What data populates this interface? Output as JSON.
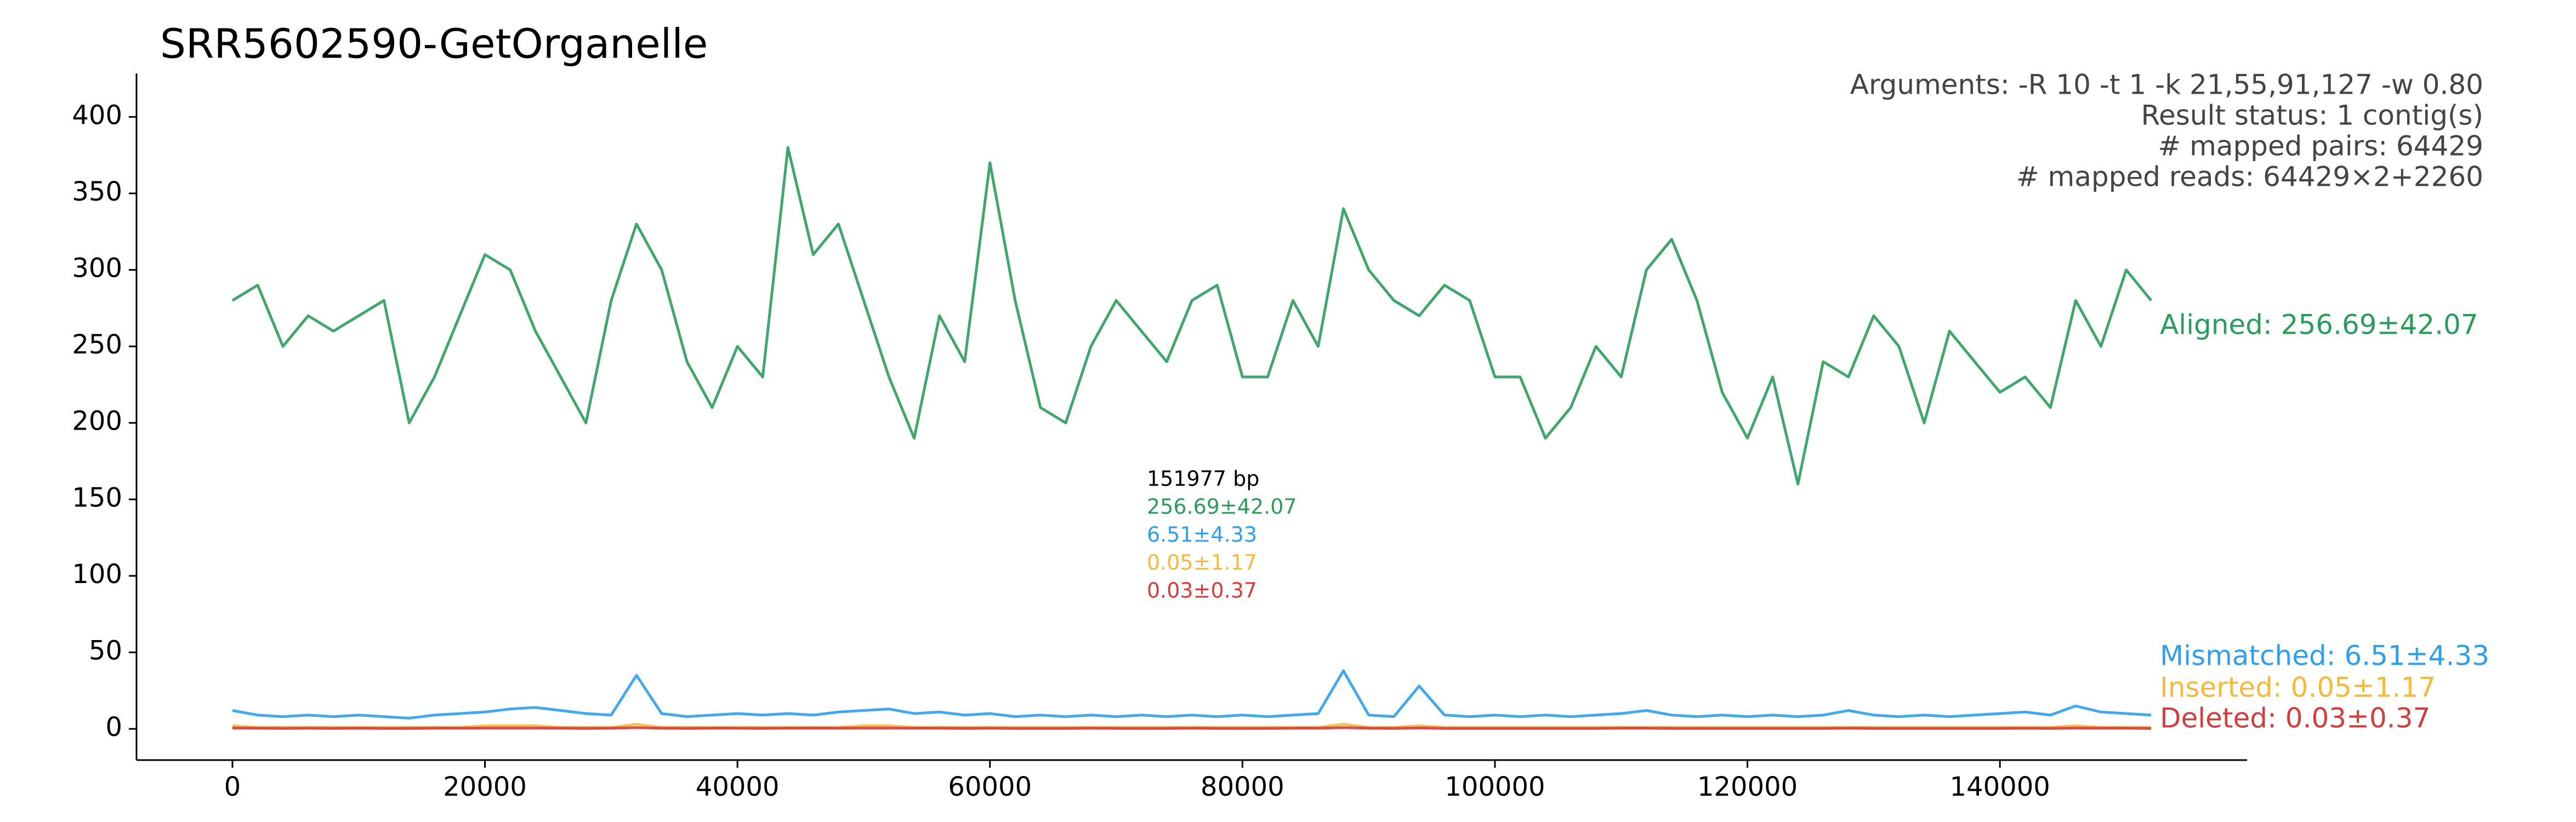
{
  "chart_data": {
    "type": "line",
    "title": "SRR5602590-GetOrganelle",
    "info_lines": [
      "Arguments: -R 10 -t 1 -k 21,55,91,127 -w 0.80",
      "Result status: 1 contig(s)",
      "# mapped pairs: 64429",
      "# mapped reads: 64429×2+2260"
    ],
    "annotations": [
      {
        "text": "151977 bp",
        "color": "#000000"
      },
      {
        "text": "256.69±42.07",
        "color": "#2a9d5c"
      },
      {
        "text": "6.51±4.33",
        "color": "#2ea0ec"
      },
      {
        "text": "0.05±1.17",
        "color": "#f6b93b"
      },
      {
        "text": "0.03±0.37",
        "color": "#d33d3d"
      }
    ],
    "x": [
      0,
      2000,
      4000,
      6000,
      8000,
      10000,
      12000,
      14000,
      16000,
      18000,
      20000,
      22000,
      24000,
      26000,
      28000,
      30000,
      32000,
      34000,
      36000,
      38000,
      40000,
      42000,
      44000,
      46000,
      48000,
      50000,
      52000,
      54000,
      56000,
      58000,
      60000,
      62000,
      64000,
      66000,
      68000,
      70000,
      72000,
      74000,
      76000,
      78000,
      80000,
      82000,
      84000,
      86000,
      88000,
      90000,
      92000,
      94000,
      96000,
      98000,
      100000,
      102000,
      104000,
      106000,
      108000,
      110000,
      112000,
      114000,
      116000,
      118000,
      120000,
      122000,
      124000,
      126000,
      128000,
      130000,
      132000,
      134000,
      136000,
      138000,
      140000,
      142000,
      144000,
      146000,
      148000,
      150000,
      151977
    ],
    "series": [
      {
        "name": "Aligned: 256.69±42.07",
        "color": "#2a9d5c",
        "values": [
          280,
          290,
          250,
          270,
          260,
          270,
          280,
          200,
          230,
          270,
          310,
          300,
          260,
          230,
          200,
          280,
          330,
          300,
          240,
          210,
          250,
          230,
          380,
          310,
          330,
          280,
          230,
          190,
          270,
          240,
          370,
          280,
          210,
          200,
          250,
          280,
          260,
          240,
          280,
          290,
          230,
          230,
          280,
          250,
          340,
          300,
          280,
          270,
          290,
          280,
          230,
          230,
          190,
          210,
          250,
          230,
          300,
          320,
          280,
          220,
          190,
          230,
          160,
          240,
          230,
          270,
          250,
          200,
          260,
          240,
          220,
          230,
          210,
          280,
          250,
          300,
          280
        ]
      },
      {
        "name": "Mismatched: 6.51±4.33",
        "color": "#2ea0ec",
        "values": [
          12,
          9,
          8,
          9,
          8,
          9,
          8,
          7,
          9,
          10,
          11,
          13,
          14,
          12,
          10,
          9,
          35,
          10,
          8,
          9,
          10,
          9,
          10,
          9,
          11,
          12,
          13,
          10,
          11,
          9,
          10,
          8,
          9,
          8,
          9,
          8,
          9,
          8,
          9,
          8,
          9,
          8,
          9,
          10,
          38,
          9,
          8,
          28,
          9,
          8,
          9,
          8,
          9,
          8,
          9,
          10,
          12,
          9,
          8,
          9,
          8,
          9,
          8,
          9,
          12,
          9,
          8,
          9,
          8,
          9,
          10,
          11,
          9,
          15,
          11,
          10,
          9
        ]
      },
      {
        "name": "Inserted: 0.05±1.17",
        "color": "#f6b93b",
        "values": [
          2,
          1,
          1,
          1,
          1,
          1,
          1,
          1,
          1,
          1,
          2,
          2,
          2,
          1,
          1,
          1,
          3,
          1,
          1,
          1,
          1,
          1,
          1,
          1,
          1,
          2,
          2,
          1,
          1,
          1,
          1,
          1,
          1,
          1,
          1,
          1,
          1,
          1,
          1,
          1,
          1,
          1,
          1,
          1,
          3,
          1,
          1,
          2,
          1,
          1,
          1,
          1,
          1,
          1,
          1,
          1,
          1,
          1,
          1,
          1,
          1,
          1,
          1,
          1,
          1,
          1,
          1,
          1,
          1,
          1,
          1,
          1,
          1,
          2,
          1,
          1,
          1
        ]
      },
      {
        "name": "Deleted: 0.03±0.37",
        "color": "#d33d3d",
        "values": [
          0.5,
          0.4,
          0.3,
          0.4,
          0.3,
          0.4,
          0.3,
          0.3,
          0.4,
          0.4,
          0.5,
          0.5,
          0.5,
          0.4,
          0.3,
          0.4,
          0.8,
          0.4,
          0.3,
          0.4,
          0.4,
          0.3,
          0.4,
          0.4,
          0.4,
          0.5,
          0.5,
          0.4,
          0.4,
          0.3,
          0.4,
          0.3,
          0.3,
          0.3,
          0.4,
          0.3,
          0.3,
          0.3,
          0.4,
          0.3,
          0.3,
          0.3,
          0.4,
          0.4,
          0.8,
          0.4,
          0.3,
          0.6,
          0.3,
          0.3,
          0.3,
          0.3,
          0.3,
          0.3,
          0.3,
          0.4,
          0.4,
          0.3,
          0.3,
          0.3,
          0.3,
          0.3,
          0.3,
          0.3,
          0.4,
          0.3,
          0.3,
          0.3,
          0.3,
          0.3,
          0.3,
          0.4,
          0.3,
          0.5,
          0.4,
          0.4,
          0.3
        ]
      }
    ],
    "xlim": [
      -7599,
      159576
    ],
    "ylim": [
      -20.4,
      428.4
    ],
    "xticks": [
      0,
      20000,
      40000,
      60000,
      80000,
      100000,
      120000,
      140000
    ],
    "yticks": [
      0,
      50,
      100,
      150,
      200,
      250,
      300,
      350,
      400
    ]
  }
}
